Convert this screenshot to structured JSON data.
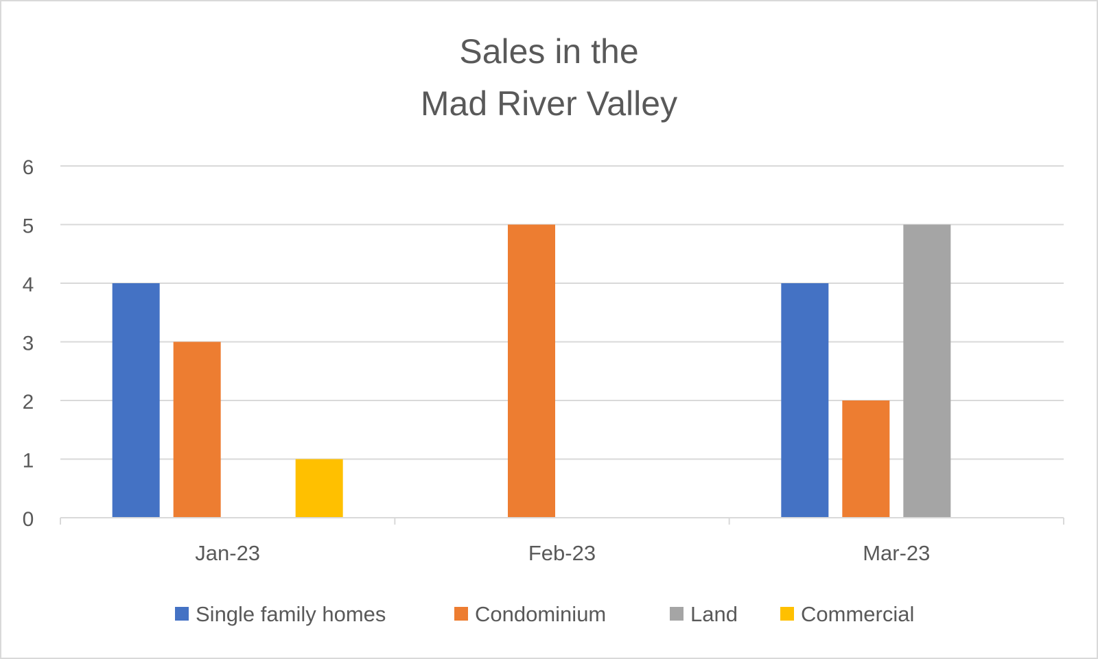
{
  "chart_data": {
    "type": "bar",
    "title": [
      "Sales in the",
      "Mad River Valley"
    ],
    "xlabel": "",
    "ylabel": "",
    "categories": [
      "Jan-23",
      "Feb-23",
      "Mar-23"
    ],
    "ylim": [
      0,
      6
    ],
    "yticks": [
      "0",
      "1",
      "2",
      "3",
      "4",
      "5",
      "6"
    ],
    "grid": true,
    "legend_position": "bottom",
    "series": [
      {
        "name": "Single family homes",
        "values": [
          4,
          0,
          4
        ],
        "color": "#4472C4"
      },
      {
        "name": "Condominium",
        "values": [
          3,
          5,
          2
        ],
        "color": "#ED7D31"
      },
      {
        "name": "Land",
        "values": [
          0,
          0,
          5
        ],
        "color": "#A5A5A5"
      },
      {
        "name": "Commercial",
        "values": [
          1,
          0,
          0
        ],
        "color": "#FFC000"
      }
    ]
  }
}
